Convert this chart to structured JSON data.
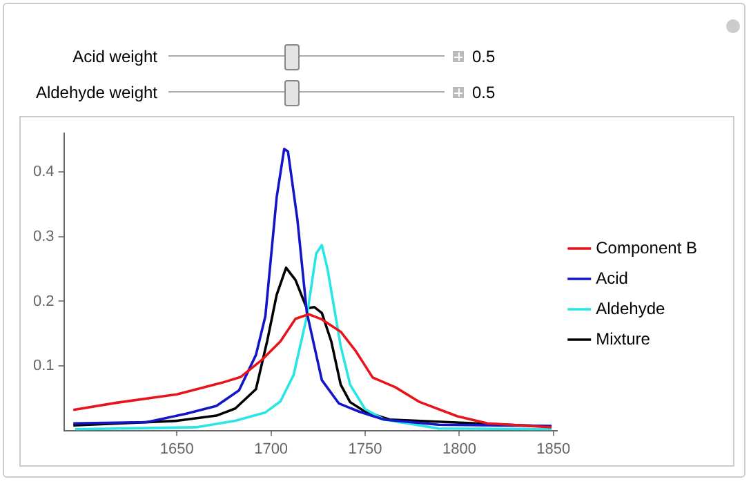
{
  "chart_data": {
    "type": "line",
    "annotations": [
      "Acid weight",
      "0.5",
      "Aldehyde weight",
      "0.5"
    ],
    "xlim": [
      1590,
      1852
    ],
    "xticks": [
      1650,
      1700,
      1750,
      1800,
      1850
    ],
    "ylim": [
      0,
      0.46
    ],
    "yticks": [
      0.1,
      0.2,
      0.3,
      0.4
    ],
    "grid": false,
    "legend": "right",
    "marker": "none",
    "line_style": "solid",
    "series": [
      {
        "name": "Component B",
        "color": "#e8141b",
        "x": [
          1595,
          1618,
          1650,
          1674,
          1684,
          1695,
          1705,
          1713,
          1720,
          1727,
          1737,
          1745,
          1754,
          1766,
          1779,
          1799,
          1815,
          1849
        ],
        "values": [
          0.032,
          0.043,
          0.056,
          0.074,
          0.083,
          0.109,
          0.138,
          0.173,
          0.18,
          0.172,
          0.153,
          0.123,
          0.082,
          0.067,
          0.044,
          0.022,
          0.011,
          0.005
        ]
      },
      {
        "name": "Acid",
        "color": "#1414c8",
        "x": [
          1595,
          1634,
          1655,
          1671,
          1683,
          1692,
          1697,
          1703,
          1707,
          1709,
          1714,
          1719,
          1727,
          1736,
          1747,
          1760,
          1789,
          1849
        ],
        "values": [
          0.011,
          0.013,
          0.026,
          0.038,
          0.062,
          0.117,
          0.177,
          0.361,
          0.436,
          0.432,
          0.327,
          0.183,
          0.078,
          0.042,
          0.029,
          0.017,
          0.009,
          0.007
        ]
      },
      {
        "name": "Aldehyde",
        "color": "#28e6e6",
        "x": [
          1596,
          1660,
          1681,
          1697,
          1705,
          1712,
          1719,
          1724,
          1727,
          1730,
          1737,
          1742,
          1750,
          1760,
          1789,
          1849
        ],
        "values": [
          0.002,
          0.005,
          0.015,
          0.028,
          0.045,
          0.086,
          0.176,
          0.274,
          0.287,
          0.25,
          0.131,
          0.071,
          0.033,
          0.017,
          0.003,
          0.002
        ]
      },
      {
        "name": "Mixture",
        "color": "#000000",
        "x": [
          1595,
          1650,
          1671,
          1681,
          1692,
          1698,
          1703,
          1708,
          1713,
          1719,
          1723,
          1727,
          1732,
          1737,
          1742,
          1750,
          1763,
          1849
        ],
        "values": [
          0.008,
          0.015,
          0.023,
          0.034,
          0.064,
          0.139,
          0.21,
          0.252,
          0.233,
          0.189,
          0.191,
          0.182,
          0.138,
          0.071,
          0.044,
          0.029,
          0.017,
          0.006
        ]
      }
    ]
  }
}
